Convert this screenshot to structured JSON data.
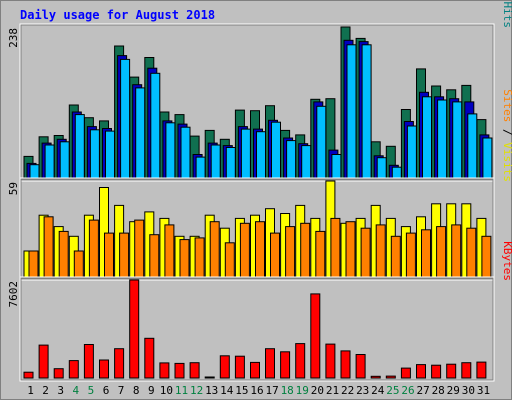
{
  "chart_data": {
    "title": "Daily usage for August 2018",
    "type": "bar",
    "days": [
      "1",
      "2",
      "3",
      "4",
      "5",
      "6",
      "7",
      "8",
      "9",
      "10",
      "11",
      "12",
      "13",
      "14",
      "15",
      "16",
      "17",
      "18",
      "19",
      "20",
      "21",
      "22",
      "23",
      "24",
      "25",
      "26",
      "27",
      "28",
      "29",
      "30",
      "31"
    ],
    "weekend_days": [
      "4",
      "5",
      "11",
      "12",
      "18",
      "19",
      "25",
      "26"
    ],
    "panels": [
      {
        "id": "pages-files-hits",
        "max_label": "238",
        "ymax": 238,
        "axis_label_parts": [
          {
            "text": "Pages",
            "color": "#00c0ff"
          },
          {
            "text": " / ",
            "color": "#000000"
          },
          {
            "text": "Files",
            "color": "#0000c0"
          },
          {
            "text": " / ",
            "color": "#000000"
          },
          {
            "text": "Hits",
            "color": "#008080"
          }
        ],
        "series": [
          {
            "name": "Hits",
            "color": "#107050",
            "values": [
              34,
              65,
              67,
              115,
              95,
              90,
              208,
              159,
              190,
              104,
              100,
              66,
              75,
              61,
              107,
              106,
              114,
              75,
              68,
              124,
              125,
              238,
              220,
              57,
              50,
              108,
              172,
              145,
              139,
              146,
              92
            ]
          },
          {
            "name": "Files",
            "color": "#0000c0",
            "values": [
              23,
              55,
              61,
              104,
              81,
              78,
              193,
              147,
              173,
              90,
              85,
              37,
              55,
              51,
              81,
              77,
              91,
              63,
              54,
              120,
              44,
              217,
              215,
              35,
              20,
              89,
              135,
              128,
              125,
              120,
              68
            ]
          },
          {
            "name": "Pages",
            "color": "#00bfff",
            "values": [
              21,
              52,
              57,
              100,
              76,
              74,
              187,
              142,
              165,
              87,
              80,
              33,
              52,
              48,
              77,
              73,
              88,
              59,
              51,
              113,
              37,
              210,
              210,
              32,
              17,
              82,
              128,
              123,
              120,
              101,
              63
            ]
          }
        ]
      },
      {
        "id": "visits-sites",
        "max_label": "59",
        "ymax": 59,
        "axis_label_parts": [
          {
            "text": "Sites",
            "color": "#ff8000"
          },
          {
            "text": " / ",
            "color": "#000000"
          },
          {
            "text": "Visits",
            "color": "#e0e000"
          }
        ],
        "series": [
          {
            "name": "Visits",
            "color": "#ffff00",
            "values": [
              16,
              38,
              31,
              25,
              38,
              55,
              44,
              34,
              40,
              36,
              25,
              25,
              38,
              30,
              36,
              38,
              42,
              39,
              44,
              36,
              59,
              33,
              36,
              44,
              36,
              31,
              37,
              45,
              45,
              45,
              36
            ]
          },
          {
            "name": "Sites",
            "color": "#ff8000",
            "values": [
              16,
              37,
              28,
              16,
              35,
              27,
              27,
              35,
              26,
              32,
              23,
              24,
              34,
              21,
              33,
              34,
              27,
              31,
              33,
              28,
              36,
              34,
              30,
              32,
              25,
              27,
              29,
              31,
              32,
              30,
              25
            ]
          }
        ]
      },
      {
        "id": "kbytes",
        "max_label": "7602",
        "ymax": 7602,
        "axis_label_parts": [
          {
            "text": "KBytes",
            "color": "#ff0000"
          }
        ],
        "series": [
          {
            "name": "KBytes",
            "color": "#ff0000",
            "values": [
              450,
              2550,
              720,
              1350,
              2600,
              1400,
              2270,
              7602,
              3080,
              1170,
              1130,
              1190,
              50,
              1720,
              1690,
              1210,
              2270,
              2030,
              2670,
              6520,
              2630,
              2100,
              1820,
              130,
              150,
              770,
              1040,
              990,
              1070,
              1190,
              1230
            ]
          }
        ]
      }
    ],
    "colors": {
      "background": "#c0c0c0",
      "border": "#808080",
      "title": "#0000ff",
      "tick_weekday": "#000000",
      "tick_weekend": "#00803f",
      "bar_outline": "#000000"
    }
  }
}
